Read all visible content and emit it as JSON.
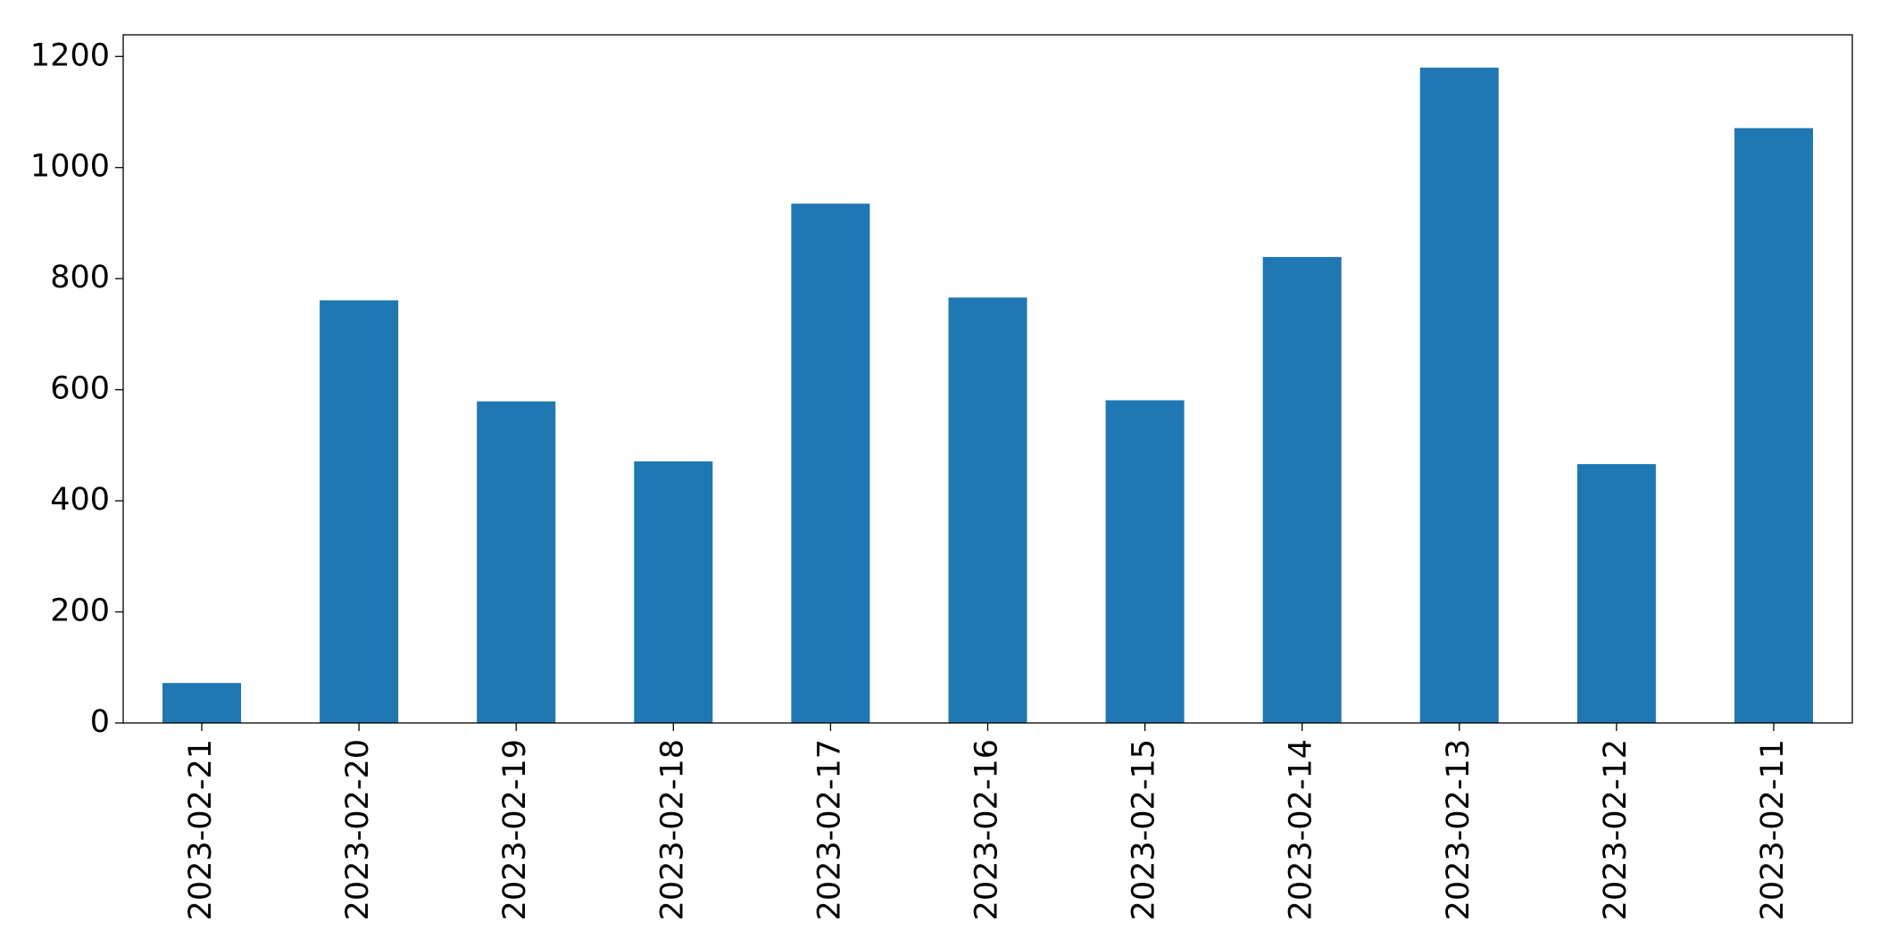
{
  "chart_data": {
    "type": "bar",
    "categories": [
      "2023-02-21",
      "2023-02-20",
      "2023-02-19",
      "2023-02-18",
      "2023-02-17",
      "2023-02-16",
      "2023-02-15",
      "2023-02-14",
      "2023-02-13",
      "2023-02-12",
      "2023-02-11"
    ],
    "values": [
      72,
      761,
      579,
      471,
      935,
      766,
      581,
      839,
      1180,
      466,
      1071
    ],
    "color": "#1f77b4",
    "ylim": [
      0,
      1239
    ],
    "yticks": [
      0,
      200,
      400,
      600,
      800,
      1000,
      1200
    ],
    "grid": false
  }
}
